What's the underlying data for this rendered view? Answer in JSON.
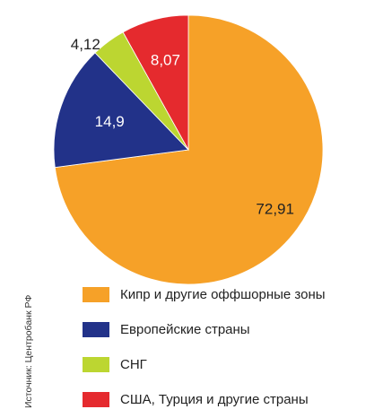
{
  "chart_data": {
    "type": "pie",
    "categories": [
      "Кипр и другие оффшорные зоны",
      "Европейские страны",
      "СНГ",
      "США, Турция и другие страны"
    ],
    "values": [
      72.91,
      14.9,
      4.12,
      8.07
    ],
    "value_labels": [
      "72,91",
      "14,9",
      "4,12",
      "8,07"
    ],
    "colors": [
      "#F6A128",
      "#223289",
      "#BCD631",
      "#E52A2E"
    ],
    "start_angle_deg": 0,
    "direction": "clockwise",
    "legend_position": "bottom",
    "source": "Источник: Центробанк РФ"
  }
}
